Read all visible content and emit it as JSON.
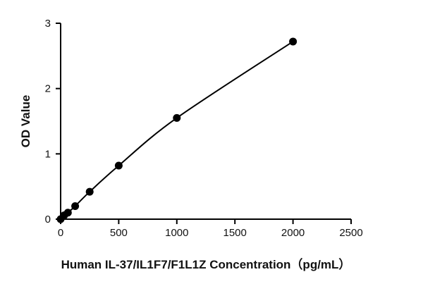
{
  "chart_data": {
    "type": "scatter",
    "xlabel": "Human IL-37/IL1F7/F1L1Z Concentration（pg/mL）",
    "ylabel": "OD Value",
    "xlim": [
      0,
      2500
    ],
    "ylim": [
      0,
      3
    ],
    "x_ticks": [
      0,
      500,
      1000,
      1500,
      2000,
      2500
    ],
    "y_ticks": [
      0,
      1,
      2,
      3
    ],
    "grid": false,
    "legend": "none",
    "fit": "smooth-curve",
    "series": [
      {
        "x": [
          0,
          31.25,
          62.5,
          125,
          250,
          500,
          1000,
          2000
        ],
        "y": [
          0.0,
          0.06,
          0.1,
          0.2,
          0.42,
          0.82,
          1.55,
          2.72
        ]
      }
    ]
  }
}
